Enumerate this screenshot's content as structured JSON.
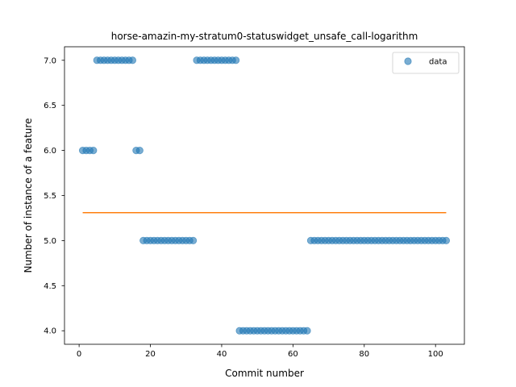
{
  "chart_data": {
    "type": "scatter",
    "title": "horse-amazin-my-stratum0-statuswidget_unsafe_call-logarithm",
    "xlabel": "Commit number",
    "ylabel": "Number of instance of a feature",
    "xlim": [
      -4.1,
      108.1
    ],
    "ylim": [
      3.85,
      7.15
    ],
    "x_ticks": [
      0,
      20,
      40,
      60,
      80,
      100
    ],
    "y_ticks": [
      4.0,
      4.5,
      5.0,
      5.5,
      6.0,
      6.5,
      7.0
    ],
    "x_tick_labels": [
      "0",
      "20",
      "40",
      "60",
      "80",
      "100"
    ],
    "y_tick_labels": [
      "4.0",
      "4.5",
      "5.0",
      "5.5",
      "6.0",
      "6.5",
      "7.0"
    ],
    "grid": false,
    "legend_position": "top-right",
    "series": [
      {
        "name": "data",
        "kind": "scatter",
        "color": "#1f77b4",
        "x": [
          1,
          2,
          3,
          4,
          5,
          6,
          7,
          8,
          9,
          10,
          11,
          12,
          13,
          14,
          15,
          16,
          17,
          18,
          19,
          20,
          21,
          22,
          23,
          24,
          25,
          26,
          27,
          28,
          29,
          30,
          31,
          32,
          33,
          34,
          35,
          36,
          37,
          38,
          39,
          40,
          41,
          42,
          43,
          44,
          45,
          46,
          47,
          48,
          49,
          50,
          51,
          52,
          53,
          54,
          55,
          56,
          57,
          58,
          59,
          60,
          61,
          62,
          63,
          64,
          65,
          66,
          67,
          68,
          69,
          70,
          71,
          72,
          73,
          74,
          75,
          76,
          77,
          78,
          79,
          80,
          81,
          82,
          83,
          84,
          85,
          86,
          87,
          88,
          89,
          90,
          91,
          92,
          93,
          94,
          95,
          96,
          97,
          98,
          99,
          100,
          101,
          102,
          103
        ],
        "y": [
          6,
          6,
          6,
          6,
          7,
          7,
          7,
          7,
          7,
          7,
          7,
          7,
          7,
          7,
          7,
          6,
          6,
          5,
          5,
          5,
          5,
          5,
          5,
          5,
          5,
          5,
          5,
          5,
          5,
          5,
          5,
          5,
          7,
          7,
          7,
          7,
          7,
          7,
          7,
          7,
          7,
          7,
          7,
          7,
          4,
          4,
          4,
          4,
          4,
          4,
          4,
          4,
          4,
          4,
          4,
          4,
          4,
          4,
          4,
          4,
          4,
          4,
          4,
          4,
          5,
          5,
          5,
          5,
          5,
          5,
          5,
          5,
          5,
          5,
          5,
          5,
          5,
          5,
          5,
          5,
          5,
          5,
          5,
          5,
          5,
          5,
          5,
          5,
          5,
          5,
          5,
          5,
          5,
          5,
          5,
          5,
          5,
          5,
          5,
          5,
          5,
          5,
          5
        ]
      },
      {
        "kind": "line",
        "color": "#ff7f0e",
        "x": [
          1,
          103
        ],
        "y": [
          5.31,
          5.31
        ]
      }
    ]
  }
}
